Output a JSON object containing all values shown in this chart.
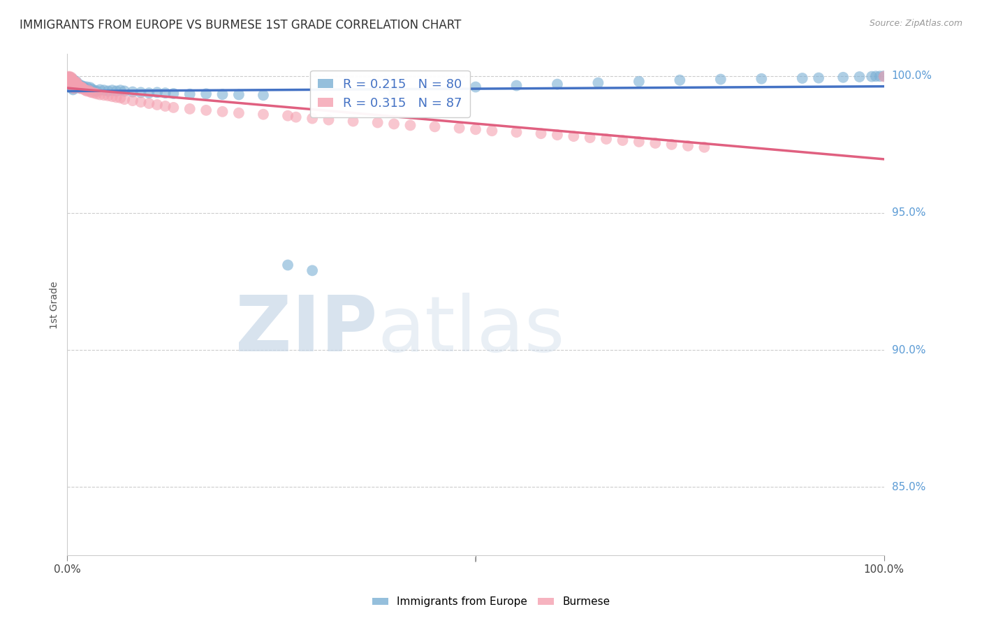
{
  "title": "IMMIGRANTS FROM EUROPE VS BURMESE 1ST GRADE CORRELATION CHART",
  "source": "Source: ZipAtlas.com",
  "ylabel": "1st Grade",
  "blue_R": 0.215,
  "blue_N": 80,
  "pink_R": 0.315,
  "pink_N": 87,
  "blue_color": "#7BAFD4",
  "pink_color": "#F4A0B0",
  "blue_line_color": "#4472C4",
  "pink_line_color": "#E06080",
  "background_color": "#FFFFFF",
  "grid_color": "#CCCCCC",
  "ytick_color": "#5B9BD5",
  "title_fontsize": 12,
  "legend_fontsize": 13,
  "blue_x": [
    0.001,
    0.002,
    0.002,
    0.003,
    0.003,
    0.003,
    0.004,
    0.004,
    0.004,
    0.005,
    0.005,
    0.005,
    0.006,
    0.006,
    0.006,
    0.007,
    0.007,
    0.007,
    0.008,
    0.008,
    0.009,
    0.009,
    0.01,
    0.01,
    0.011,
    0.011,
    0.012,
    0.012,
    0.013,
    0.014,
    0.015,
    0.016,
    0.017,
    0.018,
    0.019,
    0.02,
    0.022,
    0.024,
    0.026,
    0.028,
    0.03,
    0.033,
    0.036,
    0.04,
    0.045,
    0.05,
    0.055,
    0.06,
    0.065,
    0.07,
    0.08,
    0.09,
    0.1,
    0.11,
    0.12,
    0.13,
    0.15,
    0.17,
    0.19,
    0.21,
    0.24,
    0.27,
    0.3,
    0.4,
    0.5,
    0.55,
    0.6,
    0.65,
    0.7,
    0.75,
    0.8,
    0.85,
    0.9,
    0.92,
    0.95,
    0.97,
    0.985,
    0.99,
    0.995,
    1.0
  ],
  "blue_y": [
    0.998,
    0.999,
    0.9975,
    0.9985,
    0.997,
    0.9995,
    0.998,
    0.9965,
    0.9988,
    0.9978,
    0.996,
    0.999,
    0.9975,
    0.9955,
    0.9985,
    0.997,
    0.995,
    0.9988,
    0.9965,
    0.9978,
    0.9955,
    0.997,
    0.996,
    0.9975,
    0.9965,
    0.998,
    0.9958,
    0.9972,
    0.9962,
    0.997,
    0.996,
    0.9955,
    0.9965,
    0.996,
    0.9958,
    0.9962,
    0.9955,
    0.996,
    0.995,
    0.9958,
    0.9952,
    0.9948,
    0.9945,
    0.995,
    0.9948,
    0.9945,
    0.9948,
    0.9945,
    0.9948,
    0.9945,
    0.9942,
    0.994,
    0.9938,
    0.994,
    0.9938,
    0.9936,
    0.9934,
    0.9935,
    0.9933,
    0.9932,
    0.993,
    0.931,
    0.929,
    0.994,
    0.996,
    0.9965,
    0.997,
    0.9975,
    0.998,
    0.9985,
    0.9988,
    0.999,
    0.9992,
    0.9993,
    0.9995,
    0.9997,
    0.9998,
    0.9999,
    0.9999,
    1.0
  ],
  "pink_x": [
    0.001,
    0.001,
    0.002,
    0.002,
    0.003,
    0.003,
    0.003,
    0.004,
    0.004,
    0.004,
    0.005,
    0.005,
    0.005,
    0.006,
    0.006,
    0.006,
    0.007,
    0.007,
    0.007,
    0.008,
    0.008,
    0.009,
    0.009,
    0.01,
    0.01,
    0.011,
    0.011,
    0.012,
    0.012,
    0.013,
    0.014,
    0.015,
    0.016,
    0.017,
    0.018,
    0.019,
    0.02,
    0.022,
    0.024,
    0.026,
    0.028,
    0.03,
    0.033,
    0.036,
    0.04,
    0.045,
    0.05,
    0.055,
    0.06,
    0.065,
    0.07,
    0.08,
    0.09,
    0.1,
    0.11,
    0.12,
    0.13,
    0.15,
    0.17,
    0.19,
    0.21,
    0.24,
    0.27,
    0.28,
    0.3,
    0.32,
    0.35,
    0.38,
    0.4,
    0.42,
    0.45,
    0.48,
    0.5,
    0.52,
    0.55,
    0.58,
    0.6,
    0.62,
    0.64,
    0.66,
    0.68,
    0.7,
    0.72,
    0.74,
    0.76,
    0.78,
    1.0
  ],
  "pink_y": [
    0.999,
    0.9998,
    0.9985,
    0.9995,
    0.9988,
    0.9978,
    0.9998,
    0.9982,
    0.9992,
    0.9975,
    0.9988,
    0.997,
    0.9995,
    0.998,
    0.9965,
    0.999,
    0.9975,
    0.996,
    0.9985,
    0.997,
    0.9955,
    0.9968,
    0.998,
    0.9963,
    0.9975,
    0.9965,
    0.9978,
    0.996,
    0.9972,
    0.9965,
    0.9958,
    0.9962,
    0.9955,
    0.996,
    0.9958,
    0.9955,
    0.9952,
    0.9948,
    0.9945,
    0.9948,
    0.9942,
    0.994,
    0.9938,
    0.9935,
    0.9932,
    0.993,
    0.9928,
    0.9925,
    0.9922,
    0.992,
    0.9915,
    0.991,
    0.9905,
    0.99,
    0.9895,
    0.989,
    0.9885,
    0.988,
    0.9875,
    0.987,
    0.9865,
    0.986,
    0.9855,
    0.985,
    0.9845,
    0.984,
    0.9835,
    0.983,
    0.9825,
    0.982,
    0.9815,
    0.981,
    0.9805,
    0.98,
    0.9795,
    0.979,
    0.9785,
    0.978,
    0.9775,
    0.977,
    0.9765,
    0.976,
    0.9755,
    0.975,
    0.9745,
    0.974,
    0.9998
  ],
  "xlim": [
    0.0,
    1.0
  ],
  "ylim": [
    0.825,
    1.008
  ],
  "yticks": [
    1.0,
    0.95,
    0.9,
    0.85
  ],
  "ytick_labels": [
    "100.0%",
    "95.0%",
    "90.0%",
    "85.0%"
  ]
}
